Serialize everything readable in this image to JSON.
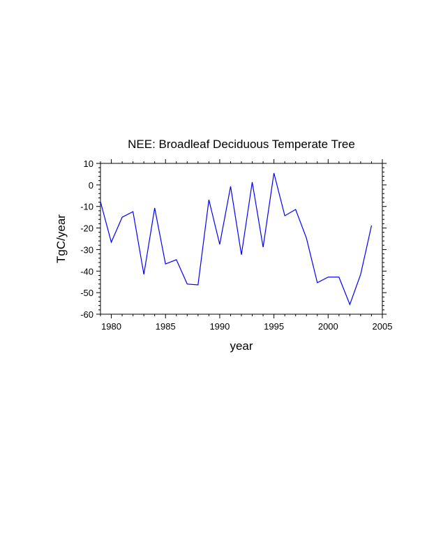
{
  "chart_data": {
    "type": "line",
    "title": "NEE: Broadleaf Deciduous Temperate Tree",
    "xlabel": "year",
    "ylabel": "TgC/year",
    "xlim": [
      1979,
      2005
    ],
    "ylim": [
      -60,
      10
    ],
    "xticks": [
      1980,
      1985,
      1990,
      1995,
      2000,
      2005
    ],
    "yticks": [
      10,
      0,
      -10,
      -20,
      -30,
      -40,
      -50,
      -60
    ],
    "grid": false,
    "series": [
      {
        "name": "NEE",
        "color": "#0000ff",
        "x": [
          1979,
          1980,
          1981,
          1982,
          1983,
          1984,
          1985,
          1986,
          1987,
          1988,
          1989,
          1990,
          1991,
          1992,
          1993,
          1994,
          1995,
          1996,
          1997,
          1998,
          1999,
          2000,
          2001,
          2002,
          2003,
          2004
        ],
        "values": [
          -7.8,
          -26.6,
          -15.0,
          -12.4,
          -41.5,
          -10.7,
          -36.7,
          -34.7,
          -46.0,
          -46.4,
          -6.9,
          -27.6,
          -0.7,
          -32.4,
          1.3,
          -28.9,
          5.5,
          -14.3,
          -11.4,
          -24.7,
          -45.4,
          -42.8,
          -42.8,
          -55.5,
          -41.5,
          -18.8
        ]
      }
    ]
  }
}
